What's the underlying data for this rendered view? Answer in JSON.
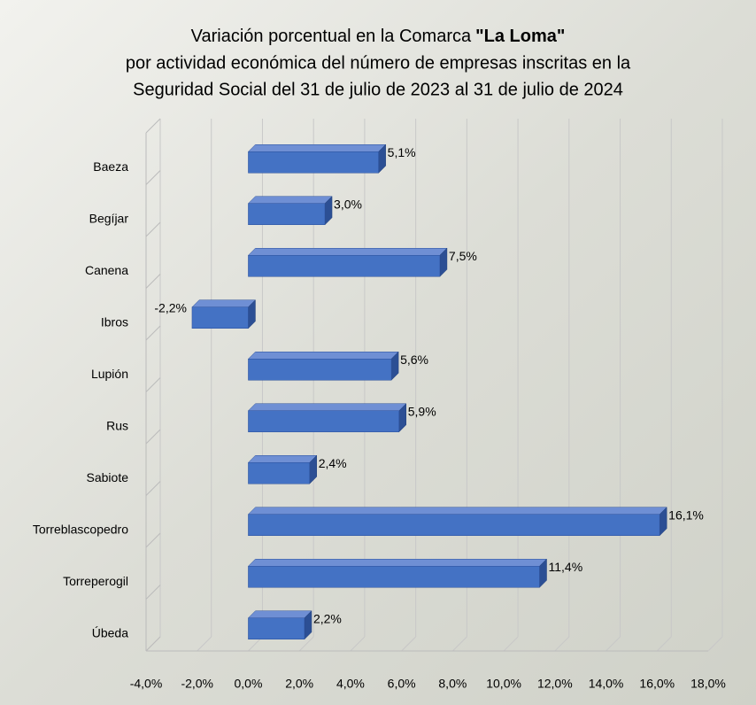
{
  "chart_data": {
    "type": "bar3d-horizontal",
    "title": {
      "lead": "Variación porcentual en la Comarca",
      "emphasis": "\"La Loma\"",
      "lines": [
        "por actividad económica del número de empresas inscritas en la",
        "Seguridad Social del 31 de julio de 2023 al 31 de julio de 2024"
      ]
    },
    "categories": [
      "Baeza",
      "Begíjar",
      "Canena",
      "Ibros",
      "Lupión",
      "Rus",
      "Sabiote",
      "Torreblascopedro",
      "Torreperogil",
      "Úbeda"
    ],
    "values": [
      5.1,
      3.0,
      7.5,
      -2.2,
      5.6,
      5.9,
      2.4,
      16.1,
      11.4,
      2.2
    ],
    "value_labels": [
      "5,1%",
      "3,0%",
      "7,5%",
      "-2,2%",
      "5,6%",
      "5,9%",
      "2,4%",
      "16,1%",
      "11,4%",
      "2,2%"
    ],
    "color": "#4472c4",
    "xlim": [
      -4,
      18
    ],
    "xticks": [
      {
        "value": -4,
        "label": "-4,0%"
      },
      {
        "value": -2,
        "label": "-2,0%"
      },
      {
        "value": 0,
        "label": "0,0%"
      },
      {
        "value": 2,
        "label": "2,0%"
      },
      {
        "value": 4,
        "label": "4,0%"
      },
      {
        "value": 6,
        "label": "6,0%"
      },
      {
        "value": 8,
        "label": "8,0%"
      },
      {
        "value": 10,
        "label": "10,0%"
      },
      {
        "value": 12,
        "label": "12,0%"
      },
      {
        "value": 14,
        "label": "14,0%"
      },
      {
        "value": 16,
        "label": "16,0%"
      },
      {
        "value": 18,
        "label": "18,0%"
      }
    ],
    "grid": true
  }
}
